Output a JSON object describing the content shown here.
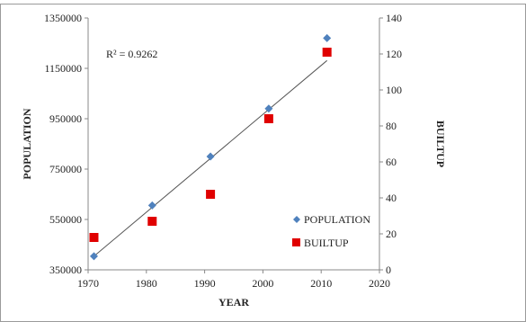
{
  "header_text": "",
  "chart_data": {
    "type": "scatter",
    "title": "",
    "xlabel": "YEAR",
    "ylabel_left": "POPULATION",
    "ylabel_right": "BUILTUP",
    "xlim": [
      1970,
      2020
    ],
    "x_ticks": [
      "1970",
      "1980",
      "1990",
      "2000",
      "2010",
      "2020"
    ],
    "ylim_left": [
      350000,
      1350000
    ],
    "y_left_ticks": [
      "350000",
      "550000",
      "750000",
      "950000",
      "1150000",
      "1350000"
    ],
    "ylim_right": [
      0,
      140
    ],
    "y_right_ticks": [
      "0",
      "20",
      "40",
      "60",
      "80",
      "100",
      "120",
      "140"
    ],
    "series": [
      {
        "name": "POPULATION",
        "axis": "left",
        "marker": "diamond",
        "color": "#4f81bd",
        "x": [
          1971,
          1981,
          1991,
          2001,
          2011
        ],
        "y": [
          404000,
          606000,
          800000,
          990000,
          1270000
        ]
      },
      {
        "name": "BUILTUP",
        "axis": "right",
        "marker": "square",
        "color": "#e00000",
        "x": [
          1971,
          1981,
          1991,
          2001,
          2011
        ],
        "y": [
          18,
          27,
          42,
          84,
          121
        ]
      }
    ],
    "trendline": {
      "series": "POPULATION",
      "x": [
        1971,
        2011
      ],
      "y": [
        404000,
        1181000
      ],
      "color": "#555555"
    },
    "annotation": "R² = 0.9262",
    "grid": false,
    "legend_position": "bottom-right"
  }
}
